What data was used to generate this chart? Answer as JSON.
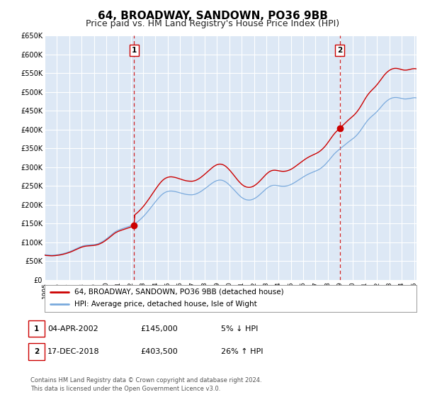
{
  "title": "64, BROADWAY, SANDOWN, PO36 9BB",
  "subtitle": "Price paid vs. HM Land Registry's House Price Index (HPI)",
  "title_fontsize": 11,
  "subtitle_fontsize": 9,
  "background_color": "#ffffff",
  "plot_bg_color": "#dde8f5",
  "grid_color": "#ffffff",
  "red_line_color": "#cc0000",
  "blue_line_color": "#7aaadd",
  "sale1_date_num": 2002.27,
  "sale1_value": 145000,
  "sale2_date_num": 2018.96,
  "sale2_value": 403500,
  "xmin": 1995,
  "xmax": 2025.2,
  "ymin": 0,
  "ymax": 650000,
  "ytick_values": [
    0,
    50000,
    100000,
    150000,
    200000,
    250000,
    300000,
    350000,
    400000,
    450000,
    500000,
    550000,
    600000,
    650000
  ],
  "ytick_labels": [
    "£0",
    "£50K",
    "£100K",
    "£150K",
    "£200K",
    "£250K",
    "£300K",
    "£350K",
    "£400K",
    "£450K",
    "£500K",
    "£550K",
    "£600K",
    "£650K"
  ],
  "xtick_years": [
    1995,
    1996,
    1997,
    1998,
    1999,
    2000,
    2001,
    2002,
    2003,
    2004,
    2005,
    2006,
    2007,
    2008,
    2009,
    2010,
    2011,
    2012,
    2013,
    2014,
    2015,
    2016,
    2017,
    2018,
    2019,
    2020,
    2021,
    2022,
    2023,
    2024,
    2025
  ],
  "legend_label_red": "64, BROADWAY, SANDOWN, PO36 9BB (detached house)",
  "legend_label_blue": "HPI: Average price, detached house, Isle of Wight",
  "table_row1": [
    "1",
    "04-APR-2002",
    "£145,000",
    "5% ↓ HPI"
  ],
  "table_row2": [
    "2",
    "17-DEC-2018",
    "£403,500",
    "26% ↑ HPI"
  ],
  "footer_line1": "Contains HM Land Registry data © Crown copyright and database right 2024.",
  "footer_line2": "This data is licensed under the Open Government Licence v3.0.",
  "hpi_monthly": {
    "start_year": 1995,
    "start_month": 1,
    "values": [
      67200,
      66800,
      66500,
      66300,
      66100,
      65900,
      65800,
      65700,
      65800,
      66000,
      66200,
      66500,
      66800,
      67100,
      67500,
      68000,
      68500,
      69100,
      69800,
      70500,
      71300,
      72100,
      73000,
      73900,
      74800,
      75800,
      76900,
      78100,
      79400,
      80700,
      82000,
      83300,
      84600,
      85800,
      87000,
      88100,
      89200,
      90100,
      90900,
      91500,
      92000,
      92400,
      92700,
      92900,
      93100,
      93300,
      93500,
      93700,
      94000,
      94400,
      94900,
      95600,
      96400,
      97400,
      98600,
      99900,
      101400,
      103000,
      104800,
      106700,
      108700,
      110800,
      113000,
      115300,
      117700,
      120100,
      122400,
      124600,
      126600,
      128400,
      130000,
      131400,
      132600,
      133700,
      134700,
      135700,
      136600,
      137500,
      138400,
      139300,
      140200,
      141100,
      142100,
      143100,
      144200,
      145400,
      146700,
      148200,
      149800,
      151600,
      153500,
      155600,
      157900,
      160300,
      162800,
      165400,
      168100,
      171000,
      174000,
      177200,
      180400,
      183700,
      187100,
      190500,
      194000,
      197500,
      201000,
      204500,
      207900,
      211300,
      214600,
      217800,
      220800,
      223600,
      226200,
      228500,
      230500,
      232200,
      233600,
      234700,
      235500,
      236100,
      236500,
      236600,
      236500,
      236200,
      235800,
      235300,
      234700,
      234000,
      233300,
      232500,
      231700,
      230900,
      230100,
      229400,
      228700,
      228100,
      227600,
      227200,
      226900,
      226700,
      226600,
      226500,
      226600,
      227000,
      227600,
      228300,
      229300,
      230500,
      231800,
      233300,
      234900,
      236700,
      238600,
      240500,
      242500,
      244600,
      246700,
      248800,
      250900,
      253000,
      255000,
      257000,
      258900,
      260600,
      262100,
      263400,
      264500,
      265200,
      265700,
      265800,
      265600,
      265100,
      264200,
      263000,
      261500,
      259700,
      257600,
      255300,
      252800,
      250100,
      247300,
      244400,
      241500,
      238500,
      235500,
      232500,
      229600,
      226800,
      224200,
      221800,
      219600,
      217700,
      216100,
      214800,
      213800,
      213100,
      212700,
      212500,
      212600,
      213000,
      213700,
      214600,
      215800,
      217300,
      219000,
      220900,
      223000,
      225300,
      227700,
      230200,
      232800,
      235400,
      237900,
      240400,
      242700,
      244800,
      246700,
      248300,
      249600,
      250600,
      251300,
      251700,
      251800,
      251700,
      251400,
      251000,
      250500,
      250100,
      249700,
      249400,
      249200,
      249200,
      249400,
      249700,
      250200,
      250900,
      251700,
      252700,
      253800,
      255100,
      256600,
      258100,
      259800,
      261500,
      263300,
      265100,
      266900,
      268700,
      270500,
      272200,
      273900,
      275600,
      277200,
      278800,
      280200,
      281600,
      282900,
      284100,
      285200,
      286300,
      287400,
      288400,
      289500,
      290700,
      292000,
      293400,
      295000,
      296800,
      298800,
      301000,
      303400,
      306000,
      308800,
      311800,
      315000,
      318300,
      321700,
      325100,
      328400,
      331600,
      334600,
      337400,
      340000,
      342400,
      344700,
      346900,
      349000,
      351200,
      353400,
      355700,
      358000,
      360300,
      362600,
      364800,
      367000,
      369100,
      371100,
      373100,
      375100,
      377200,
      379500,
      382000,
      384800,
      387800,
      391100,
      394600,
      398300,
      402200,
      406300,
      410400,
      414400,
      418300,
      421900,
      425200,
      428200,
      431000,
      433500,
      435900,
      438200,
      440500,
      443000,
      445600,
      448400,
      451400,
      454500,
      457700,
      461000,
      464200,
      467300,
      470200,
      472900,
      475300,
      477500,
      479400,
      481100,
      482500,
      483700,
      484600,
      485200,
      485600,
      485700,
      485600,
      485300,
      484800,
      484200,
      483500,
      482800,
      482200,
      481800,
      481600,
      481600,
      481800,
      482200,
      482700,
      483300,
      483900,
      484400,
      484800,
      485000,
      485000,
      484700,
      484300,
      483700,
      482900,
      482100,
      481300,
      480500,
      479700,
      479100,
      478500
    ]
  }
}
